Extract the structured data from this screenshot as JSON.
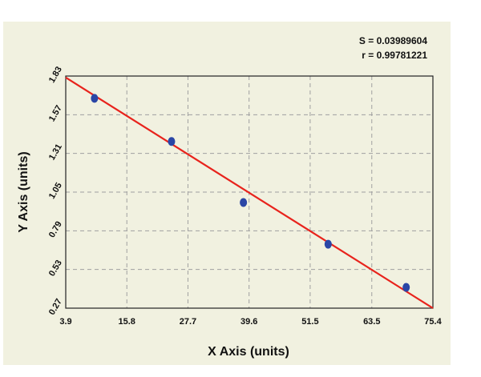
{
  "chart_data": {
    "type": "scatter",
    "xlabel": "X Axis (units)",
    "ylabel": "Y Axis (units)",
    "xlim": [
      3.9,
      75.4
    ],
    "ylim": [
      0.27,
      1.83
    ],
    "x_ticks": [
      "3.9",
      "15.8",
      "27.7",
      "39.6",
      "51.5",
      "63.5",
      "75.4"
    ],
    "y_ticks": [
      "0.27",
      "0.53",
      "0.79",
      "1.05",
      "1.31",
      "1.57",
      "1.83"
    ],
    "grid": true,
    "points": [
      {
        "x": 9.5,
        "y": 1.68
      },
      {
        "x": 24.5,
        "y": 1.39
      },
      {
        "x": 38.5,
        "y": 0.98
      },
      {
        "x": 55.0,
        "y": 0.7
      },
      {
        "x": 70.2,
        "y": 0.41
      }
    ],
    "fit_line": [
      {
        "x": 3.9,
        "y": 1.82
      },
      {
        "x": 75.4,
        "y": 0.27
      }
    ],
    "annotations": {
      "s": "S = 0.03989604",
      "r": "r = 0.99781221"
    },
    "colors": {
      "points": "#2a46a6",
      "fit_line": "#e8231c",
      "grid": "#a0a0a0",
      "background": "#f1f1e0"
    }
  }
}
